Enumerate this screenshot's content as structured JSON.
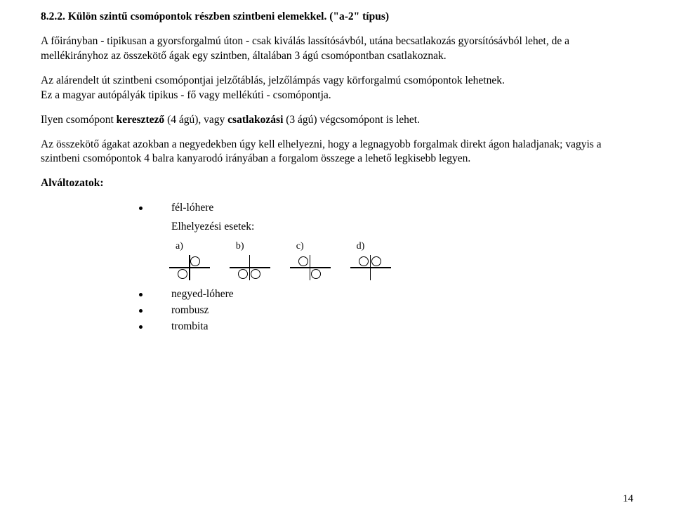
{
  "heading": "8.2.2. Külön szintű csomópontok részben szintbeni elemekkel. (\"a-2\" típus)",
  "p1": "A főirányban - tipikusan a gyorsforgalmú úton - csak kiválás lassítósávból, utána becsatlakozás gyorsítósávból lehet, de a mellékirányhoz az összekötő ágak egy szintben, általában 3 ágú csomópontban csatlakoznak.",
  "p2": "Az alárendelt út szintbeni csomópontjai jelzőtáblás, jelzőlámpás vagy körforgalmú csomópontok lehetnek.",
  "p3": "Ez a magyar autópályák tipikus - fő vagy mellékúti - csomópontja.",
  "p4_prefix": "Ilyen csomópont ",
  "p4_b1": "keresztező",
  "p4_mid1": " (4 ágú), vagy ",
  "p4_b2": "csatlakozási",
  "p4_suffix": " (3 ágú) végcsomópont is lehet.",
  "p5": "Az összekötő ágakat azokban a negyedekben úgy kell elhelyezni, hogy a legnagyobb forgalmak direkt ágon haladjanak; vagyis a szintbeni csomópontok 4 balra kanyarodó irányában a forgalom összege a lehető legkisebb legyen.",
  "alv_title": "Alváltozatok:",
  "li1": "fél-lóhere",
  "elh_label": "Elhelyezési esetek:",
  "labels": {
    "a": "a)",
    "b": "b)",
    "c": "c)",
    "d": "d)"
  },
  "li2": "negyed-lóhere",
  "li3": "rombusz",
  "li4": "trombita",
  "page": "14"
}
